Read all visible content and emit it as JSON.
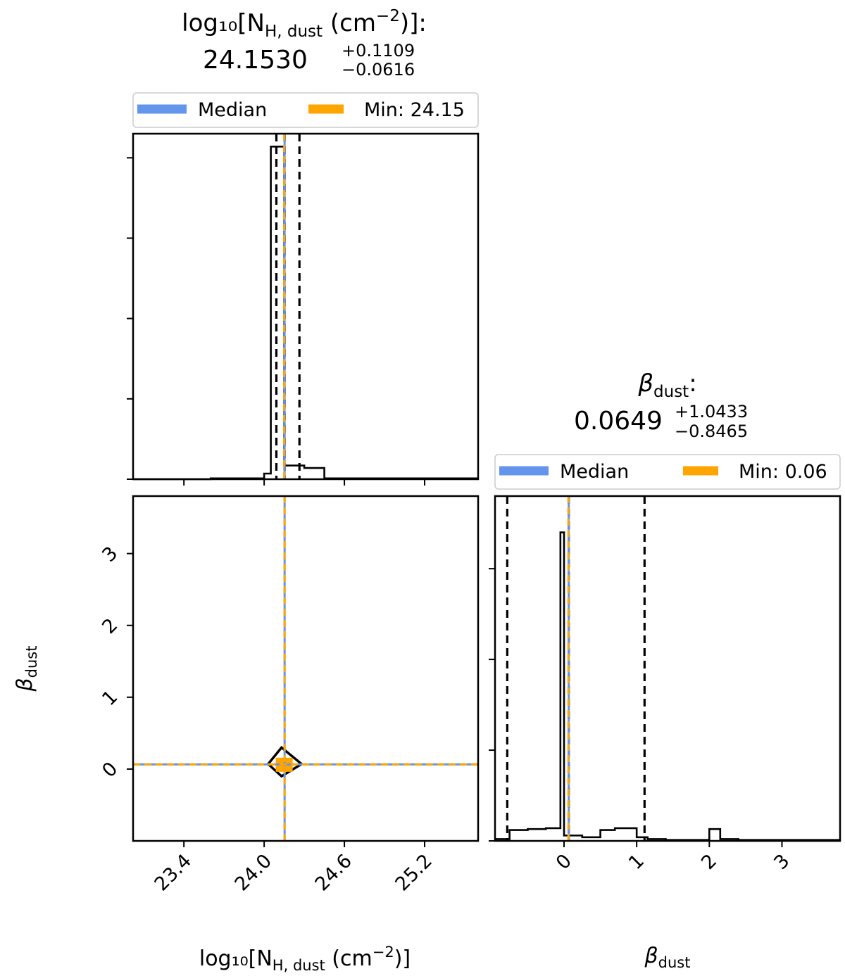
{
  "chart_data": [
    {
      "type": "histogram",
      "panel": "top-left",
      "title_line1": "log₁₀[N",
      "title_sub": "H, dust",
      "title_line1_after": " (cm",
      "title_sup": "−2",
      "title_line1_end": ")]:",
      "title_value": "24.1530",
      "title_plus": "+0.1109",
      "title_minus": "−0.0616",
      "legend": {
        "median_label": "Median",
        "min_label": "Min: 24.15",
        "placement": "top, above panel"
      },
      "xlim": [
        23.02,
        25.6
      ],
      "ylim": [
        0,
        4.3
      ],
      "bin_edges": [
        23.0,
        23.6,
        24.0,
        24.05,
        24.1,
        24.15,
        24.2,
        24.3,
        24.45,
        25.0,
        25.6
      ],
      "counts": [
        0,
        0.01,
        0.07,
        4.14,
        4.14,
        0.17,
        0.17,
        0.14,
        0.01,
        0.01
      ],
      "quantile_lines": [
        24.0914,
        24.153,
        24.2639
      ],
      "median": 24.153,
      "min": 24.15,
      "x_ticks": [
        23.4,
        24.0,
        24.6,
        25.2
      ],
      "y_ticks": [
        0,
        1,
        2,
        3,
        4
      ],
      "y_tick_labels_shown": false
    },
    {
      "type": "scatter",
      "panel": "bottom-left",
      "xlabel_main": "log₁₀[N",
      "xlabel_sub": "H, dust",
      "xlabel_after": " (cm",
      "xlabel_sup": "−2",
      "xlabel_end": ")]",
      "ylabel_main": "β",
      "ylabel_sub": "dust",
      "xlim": [
        23.02,
        25.6
      ],
      "ylim": [
        -1.0,
        3.8
      ],
      "x_ticks": [
        23.4,
        24.0,
        24.6,
        25.2
      ],
      "x_tick_labels": [
        "23.4",
        "24.0",
        "24.6",
        "25.2"
      ],
      "y_ticks": [
        0,
        1,
        2,
        3
      ],
      "y_tick_labels": [
        "0",
        "1",
        "2",
        "3"
      ],
      "median_point": {
        "x": 24.153,
        "y": 0.0649
      },
      "contour_points": [
        [
          24.03,
          0.07
        ],
        [
          24.13,
          0.3
        ],
        [
          24.28,
          0.07
        ],
        [
          24.13,
          -0.1
        ]
      ],
      "center_marker": {
        "x": 24.15,
        "y": 0.06
      }
    },
    {
      "type": "histogram",
      "panel": "bottom-right",
      "title_main": "β",
      "title_sub": "dust",
      "title_colon": ":",
      "title_value": "0.0649",
      "title_plus": "+1.0433",
      "title_minus": "−0.8465",
      "legend": {
        "median_label": "Median",
        "min_label": "Min: 0.06",
        "placement": "top, above panel"
      },
      "xlabel_main": "β",
      "xlabel_sub": "dust",
      "xlim": [
        -0.95,
        3.8
      ],
      "ylim": [
        0,
        3.8
      ],
      "bin_edges": [
        -1.0,
        -0.75,
        -0.5,
        -0.25,
        -0.05,
        0.0,
        0.25,
        0.5,
        0.7,
        1.0,
        1.15,
        1.4,
        1.6,
        2.0,
        2.15,
        2.4,
        2.65,
        2.9,
        3.2,
        3.8
      ],
      "counts": [
        0.02,
        0.12,
        0.13,
        0.14,
        3.4,
        0.06,
        0.04,
        0.12,
        0.14,
        0.04,
        0.02,
        0.01,
        0.01,
        0.13,
        0.02,
        0.01,
        0.01,
        0.01,
        0.01
      ],
      "quantile_lines": [
        -0.7816,
        0.0649,
        1.1082
      ],
      "median": 0.0649,
      "min": 0.06,
      "x_ticks": [
        0,
        1,
        2,
        3
      ],
      "x_tick_labels": [
        "0",
        "1",
        "2",
        "3"
      ],
      "y_ticks": [
        0,
        1,
        2,
        3
      ],
      "y_tick_labels_shown": false
    }
  ],
  "colors": {
    "median": "#6495ed",
    "min": "#ffa500",
    "hist": "#000000"
  }
}
